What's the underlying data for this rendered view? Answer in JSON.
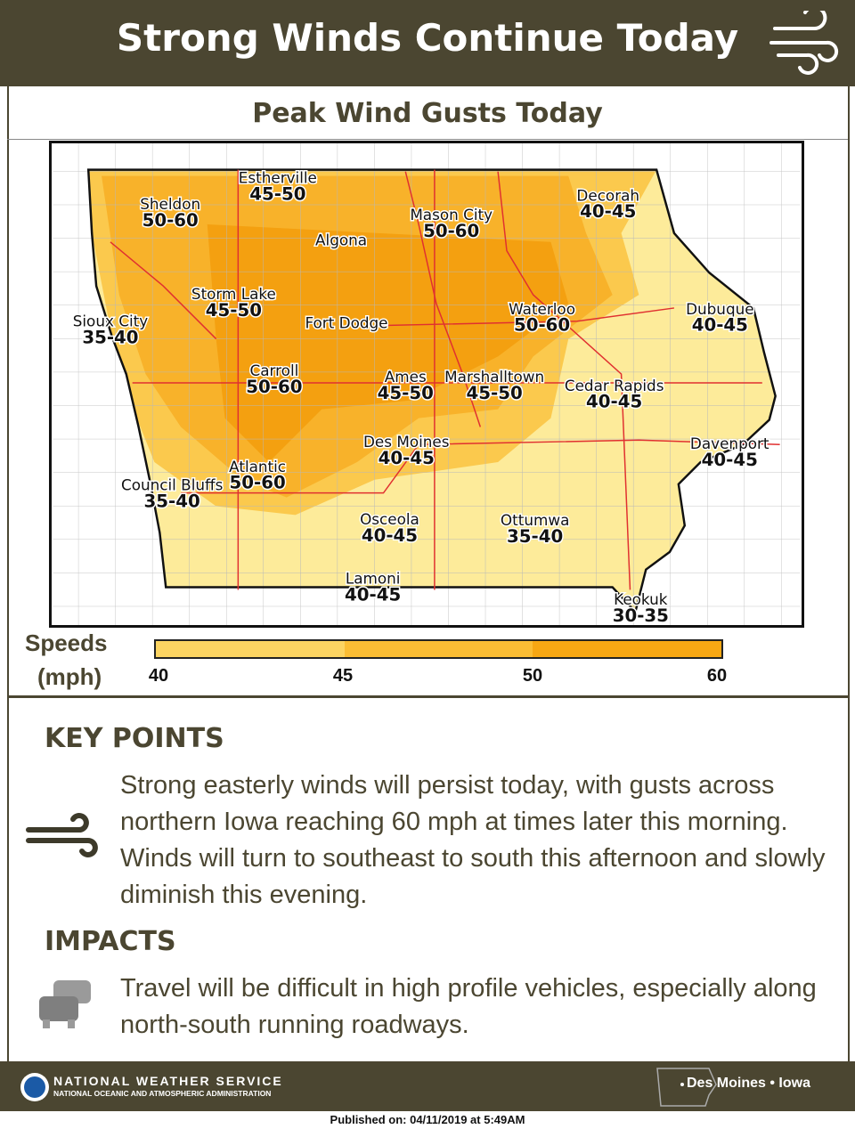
{
  "header": {
    "title": "Strong Winds Continue Today"
  },
  "map": {
    "title": "Peak Wind Gusts Today",
    "cities": [
      {
        "name": "Estherville",
        "range": "45-50"
      },
      {
        "name": "Sheldon",
        "range": "50-60"
      },
      {
        "name": "Mason City",
        "range": "50-60"
      },
      {
        "name": "Decorah",
        "range": "40-45"
      },
      {
        "name": "Algona"
      },
      {
        "name": "Storm Lake",
        "range": "45-50"
      },
      {
        "name": "Sioux City",
        "range": "35-40"
      },
      {
        "name": "Fort Dodge"
      },
      {
        "name": "Waterloo",
        "range": "50-60"
      },
      {
        "name": "Dubuque",
        "range": "40-45"
      },
      {
        "name": "Carroll",
        "range": "50-60"
      },
      {
        "name": "Ames",
        "range": "45-50"
      },
      {
        "name": "Marshalltown",
        "range": "45-50"
      },
      {
        "name": "Cedar Rapids",
        "range": "40-45"
      },
      {
        "name": "Des Moines",
        "range": "40-45"
      },
      {
        "name": "Davenport",
        "range": "40-45"
      },
      {
        "name": "Atlantic",
        "range": "50-60"
      },
      {
        "name": "Council Bluffs",
        "range": "35-40"
      },
      {
        "name": "Osceola",
        "range": "40-45"
      },
      {
        "name": "Ottumwa",
        "range": "35-40"
      },
      {
        "name": "Lamoni",
        "range": "40-45"
      },
      {
        "name": "Keokuk",
        "range": "30-35"
      }
    ]
  },
  "legend": {
    "title_lines": [
      "Speeds",
      "(mph)"
    ],
    "ticks": [
      40,
      45,
      50,
      60
    ],
    "colors": [
      "#fcd462",
      "#fbbd34",
      "#f7a713"
    ]
  },
  "key_points": {
    "heading": "KEY POINTS",
    "text": "Strong easterly winds will persist today, with gusts across northern Iowa reaching 60 mph at times later this morning. Winds will turn to southeast to south this afternoon and slowly diminish this evening."
  },
  "impacts": {
    "heading": "IMPACTS",
    "text": "Travel will be difficult in high profile vehicles, especially along north-south running roadways."
  },
  "footer": {
    "agency": "NATIONAL WEATHER SERVICE",
    "parent": "NATIONAL OCEANIC AND ATMOSPHERIC ADMINISTRATION",
    "office": "Des Moines",
    "state": "Iowa",
    "published": "Published on: 04/11/2019 at 5:49AM"
  }
}
